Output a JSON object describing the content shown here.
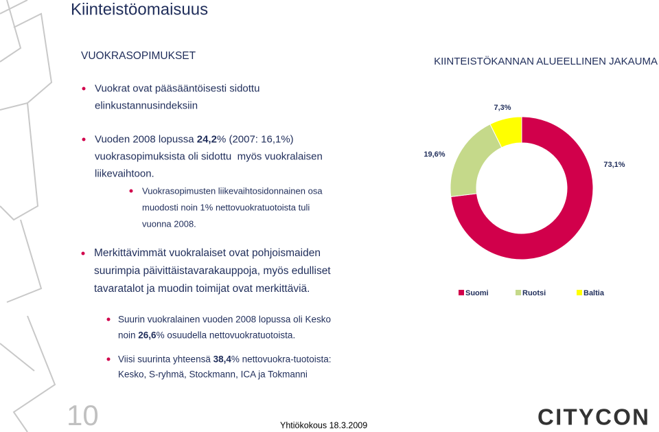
{
  "title": "Kiinteistöomaisuus",
  "section_heading": "VUOKRASOPIMUKSET",
  "bullets": [
    {
      "lines": [
        [
          {
            "text": "Vuokrat ovat pääsääntöisesti sidottu"
          }
        ],
        [
          {
            "text": "elinkustannusindeksiin"
          }
        ]
      ]
    },
    {
      "lines": [
        [
          {
            "text": "Vuoden 2008 lopussa "
          },
          {
            "text": "24,2",
            "bold": true
          },
          {
            "text": "% (2007: 16,1%)"
          }
        ],
        [
          {
            "text": "vuokrasopimuksista oli sidottu  myös vuokralaisen"
          }
        ],
        [
          {
            "text": "liikevaihtoon."
          }
        ]
      ]
    },
    {
      "lines": [
        [
          {
            "text": "Vuokrasopimusten liikevaihtosidonnainen osa"
          }
        ],
        [
          {
            "text": "muodosti noin 1% nettovuokratuotoista tuli"
          }
        ],
        [
          {
            "text": "vuonna 2008."
          }
        ]
      ]
    },
    {
      "lines": [
        [
          {
            "text": "Merkittävimmät vuokralaiset ovat pohjoismaiden"
          }
        ],
        [
          {
            "text": "suurimpia päivittäistavarakauppoja, myös edulliset"
          }
        ],
        [
          {
            "text": "tavaratalot ja muodin toimijat ovat merkittäviä."
          }
        ]
      ]
    },
    {
      "lines": [
        [
          {
            "text": "Suurin vuokralainen vuoden 2008 lopussa oli Kesko"
          }
        ],
        [
          {
            "text": "noin "
          },
          {
            "text": "26,6",
            "bold": true
          },
          {
            "text": "% osuudella nettovuokratuotoista."
          }
        ]
      ]
    },
    {
      "lines": [
        [
          {
            "text": "Viisi suurinta yhteensä "
          },
          {
            "text": "38,4",
            "bold": true
          },
          {
            "text": "% nettovuokra-tuotoista:"
          }
        ],
        [
          {
            "text": "Kesko, S-ryhmä, Stockmann, ICA ja Tokmanni"
          }
        ]
      ]
    }
  ],
  "chart_data": {
    "type": "donut",
    "title": "KIINTEISTÖKANNAN ALUEELLINEN JAKAUMA",
    "categories": [
      "Suomi",
      "Ruotsi",
      "Baltia"
    ],
    "values": [
      73.1,
      19.6,
      7.3
    ],
    "value_labels": [
      "73,1%",
      "19,6%",
      "7,3%"
    ],
    "colors": [
      "#d1004b",
      "#c5d98a",
      "#ffff00"
    ]
  },
  "page_number": "10",
  "footer": "Yhtiökokous 18.3.2009",
  "logo": "CITYCON"
}
